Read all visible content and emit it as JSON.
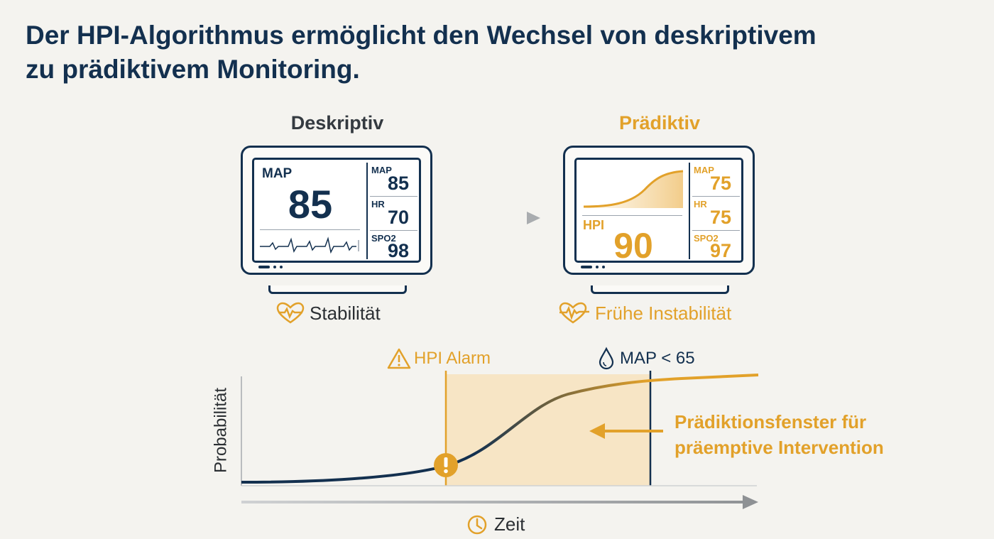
{
  "title": {
    "line1": "Der HPI-Algorithmus ermöglicht den Wechsel von deskriptivem",
    "line2": "zu prädiktivem Monitoring."
  },
  "descriptive": {
    "label": "Deskriptiv",
    "main_label": "MAP",
    "main_value": "85",
    "side": [
      {
        "label": "MAP",
        "value": "85"
      },
      {
        "label": "HR",
        "value": "70"
      },
      {
        "label": "SPO2",
        "value": "98"
      }
    ],
    "status": "Stabilität",
    "status_icon": "heartbeat-icon"
  },
  "predictive": {
    "label": "Prädiktiv",
    "main_label": "HPI",
    "main_value": "90",
    "side": [
      {
        "label": "MAP",
        "value": "75"
      },
      {
        "label": "HR",
        "value": "75"
      },
      {
        "label": "SPO2",
        "value": "97"
      }
    ],
    "status": "Frühe Instabilität",
    "status_icon": "heartbeat-icon"
  },
  "timeline": {
    "alarm_label": "HPI Alarm",
    "alarm_icon": "warning-icon",
    "map_label": "MAP < 65",
    "map_icon": "drop-icon",
    "y_label": "Probabilität",
    "x_label": "Zeit",
    "x_icon": "clock-icon",
    "window_label_line1": "Prädiktionsfenster für",
    "window_label_line2": "präemptive Intervention",
    "marker_icon": "exclamation-icon"
  },
  "colors": {
    "navy": "#13304f",
    "accent": "#e2a12a",
    "window_fill": "#f7e5c5"
  }
}
